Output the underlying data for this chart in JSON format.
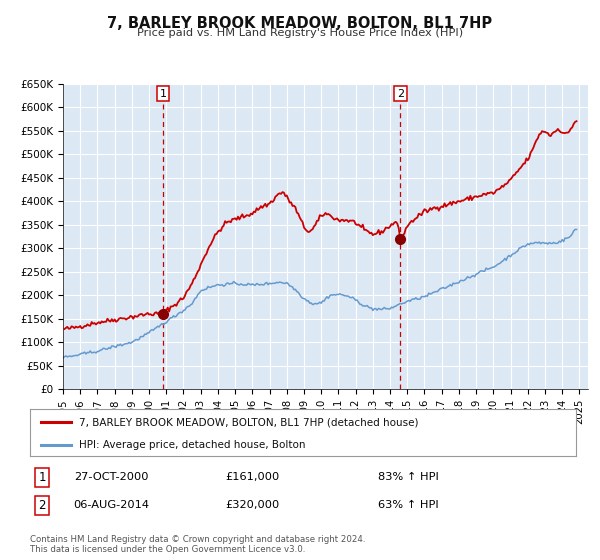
{
  "title": "7, BARLEY BROOK MEADOW, BOLTON, BL1 7HP",
  "subtitle": "Price paid vs. HM Land Registry's House Price Index (HPI)",
  "plot_bg_color": "#dce9f5",
  "fig_bg_color": "#ffffff",
  "grid_color": "#ffffff",
  "red_line_color": "#cc0000",
  "blue_line_color": "#6699cc",
  "marker_color": "#880000",
  "ylim": [
    0,
    650000
  ],
  "yticks": [
    0,
    50000,
    100000,
    150000,
    200000,
    250000,
    300000,
    350000,
    400000,
    450000,
    500000,
    550000,
    600000,
    650000
  ],
  "ytick_labels": [
    "£0",
    "£50K",
    "£100K",
    "£150K",
    "£200K",
    "£250K",
    "£300K",
    "£350K",
    "£400K",
    "£450K",
    "£500K",
    "£550K",
    "£600K",
    "£650K"
  ],
  "xlim_start": 1995.0,
  "xlim_end": 2025.5,
  "xtick_years": [
    1995,
    1996,
    1997,
    1998,
    1999,
    2000,
    2001,
    2002,
    2003,
    2004,
    2005,
    2006,
    2007,
    2008,
    2009,
    2010,
    2011,
    2012,
    2013,
    2014,
    2015,
    2016,
    2017,
    2018,
    2019,
    2020,
    2021,
    2022,
    2023,
    2024,
    2025
  ],
  "sale1_x": 2000.82,
  "sale1_y": 161000,
  "sale2_x": 2014.59,
  "sale2_y": 320000,
  "legend_red_label": "7, BARLEY BROOK MEADOW, BOLTON, BL1 7HP (detached house)",
  "legend_blue_label": "HPI: Average price, detached house, Bolton",
  "annotation1_box_label": "1",
  "annotation1_date": "27-OCT-2000",
  "annotation1_price": "£161,000",
  "annotation1_hpi": "83% ↑ HPI",
  "annotation2_box_label": "2",
  "annotation2_date": "06-AUG-2014",
  "annotation2_price": "£320,000",
  "annotation2_hpi": "63% ↑ HPI",
  "footer_line1": "Contains HM Land Registry data © Crown copyright and database right 2024.",
  "footer_line2": "This data is licensed under the Open Government Licence v3.0."
}
